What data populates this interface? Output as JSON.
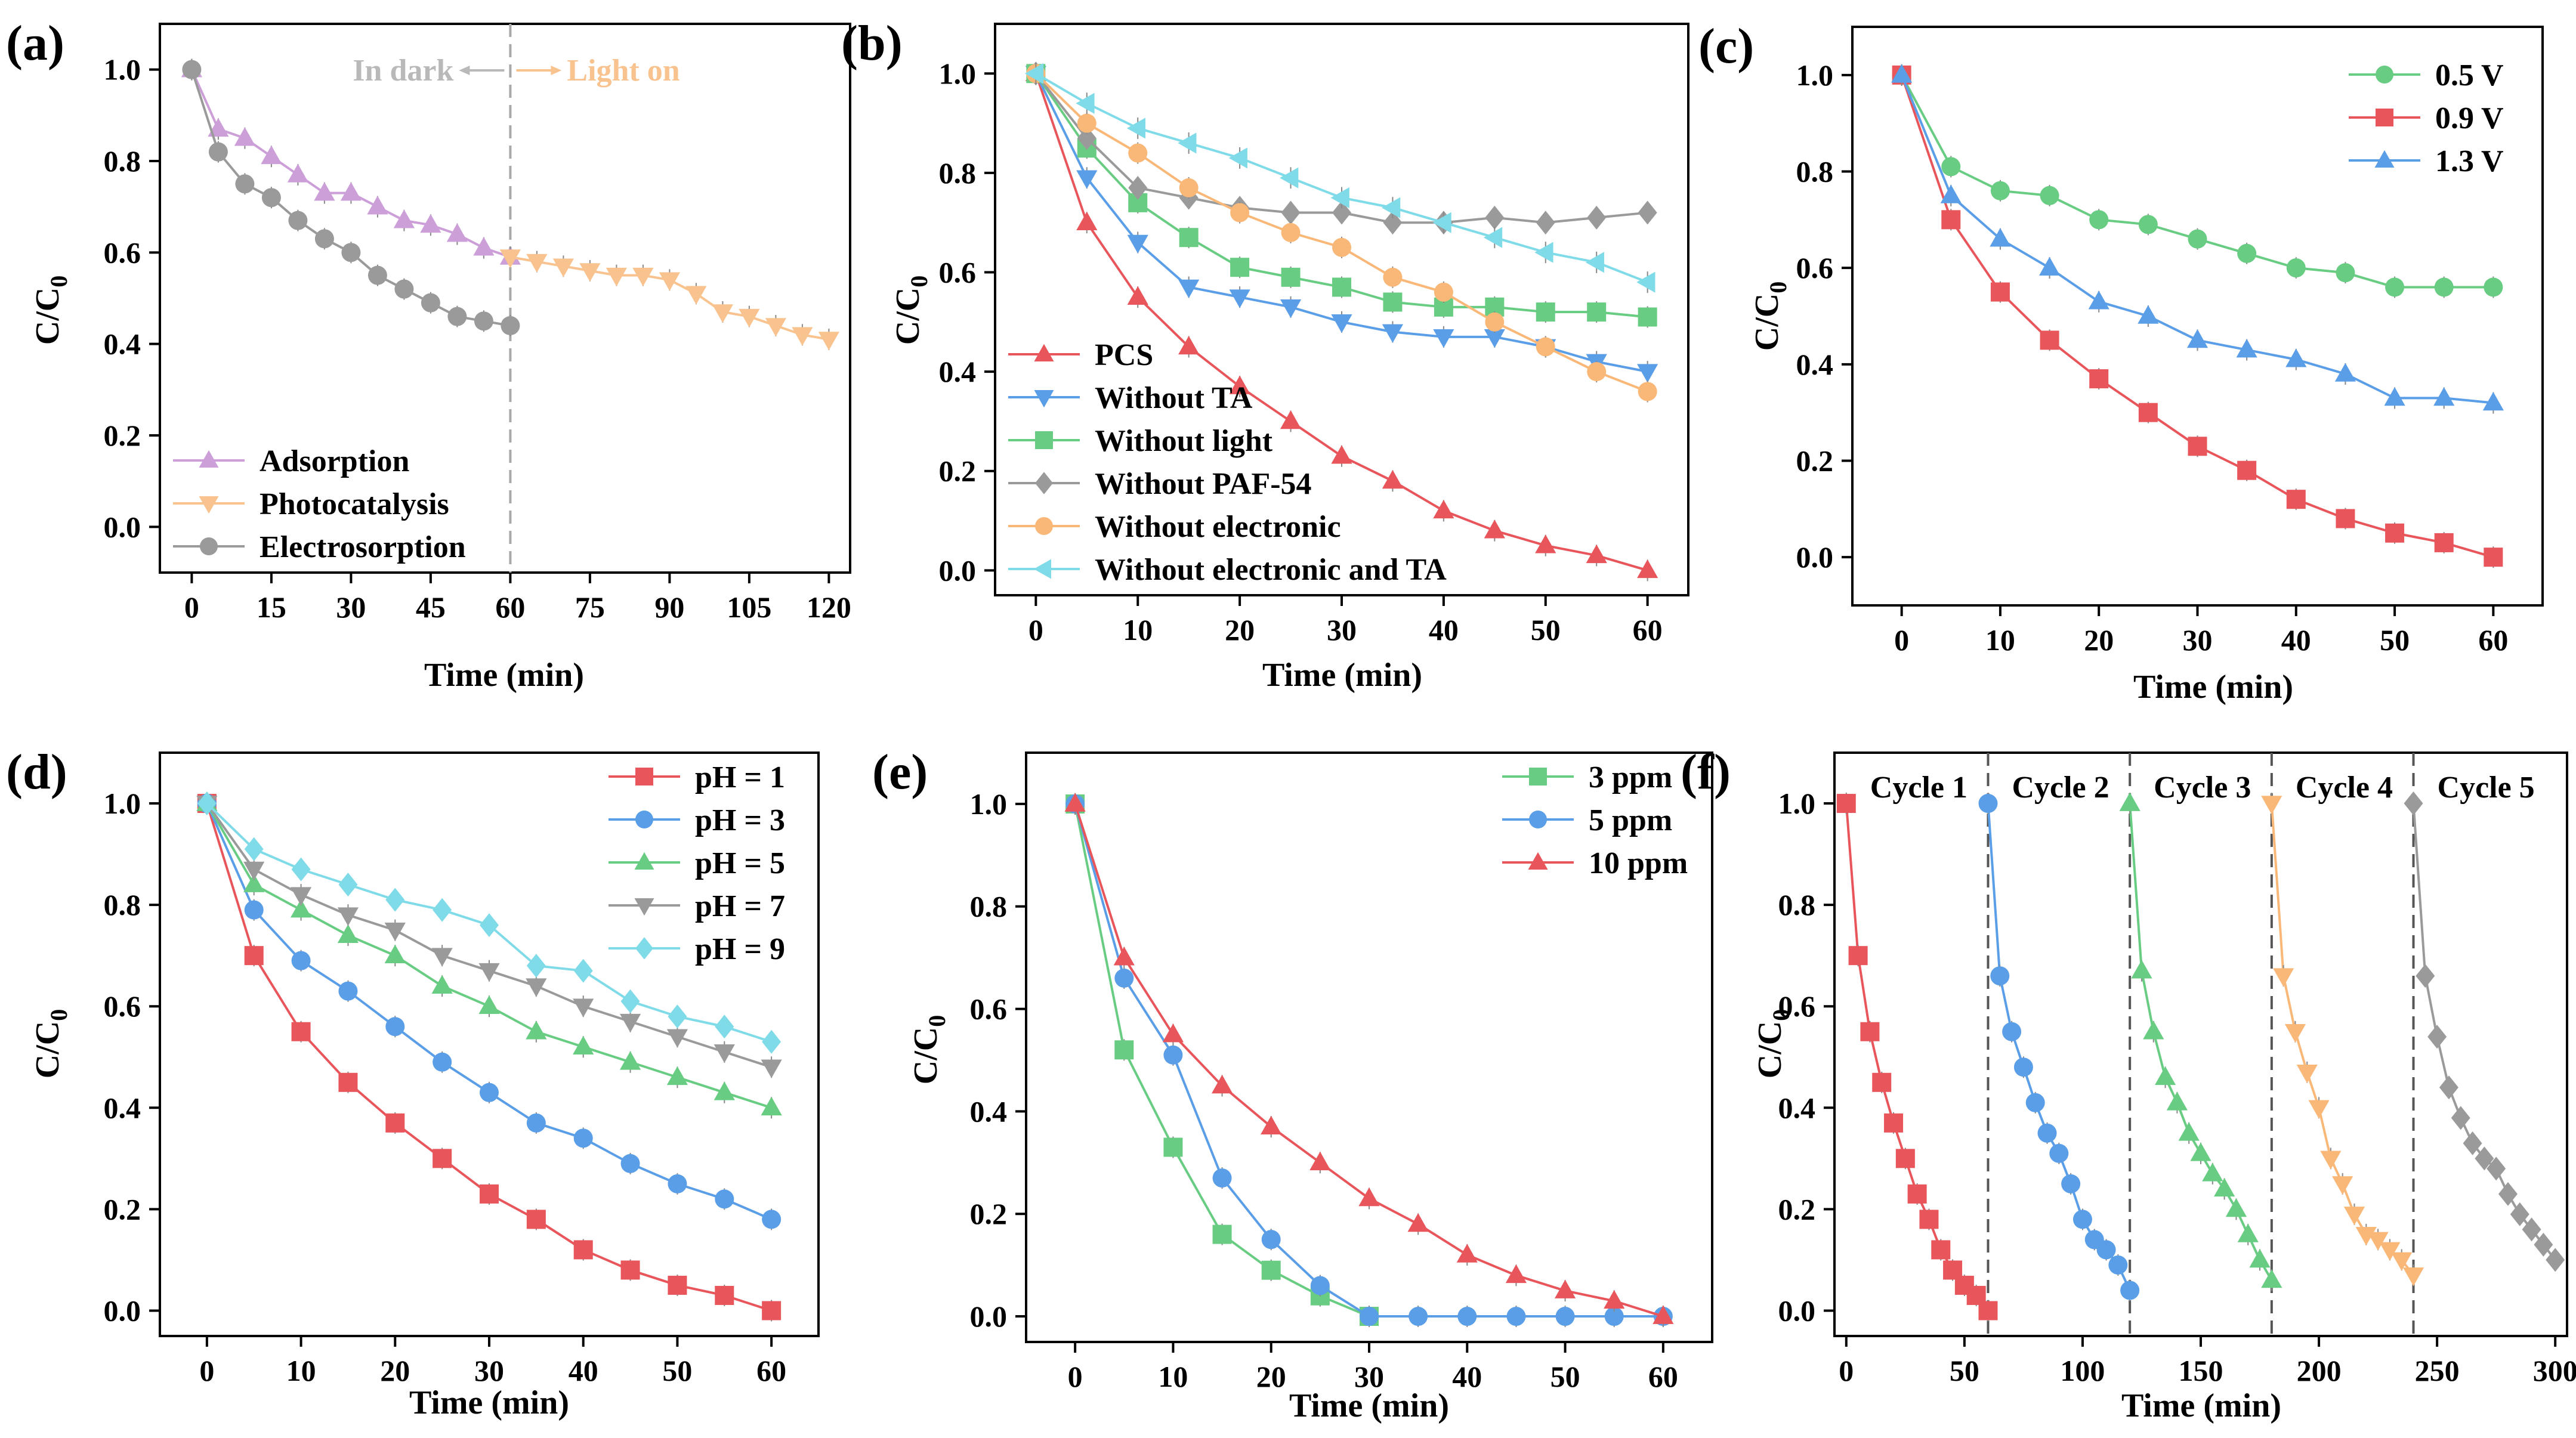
{
  "chart_data": [
    {
      "panel": "(a)",
      "type": "line",
      "xlabel": "Time (min)",
      "ylabel_main": "C/C",
      "ylabel_sub": "0",
      "xlim": [
        -6,
        124
      ],
      "ylim": [
        -0.1,
        1.1
      ],
      "xticks": [
        0,
        15,
        30,
        45,
        60,
        75,
        90,
        105,
        120
      ],
      "yticks": [
        "0.0",
        "0.2",
        "0.4",
        "0.6",
        "0.8",
        "1.0"
      ],
      "annotations": {
        "dark": "In dark",
        "light": "Light on",
        "dark_color": "#b9b9b9",
        "light_color": "#f9c38f"
      },
      "divider_x": [
        60
      ],
      "legend_pos": "bottom-left",
      "series": [
        {
          "name": "Adsorption",
          "color": "#cc9fd8",
          "marker": "tri-up",
          "x": [
            0,
            5,
            10,
            15,
            20,
            25,
            30,
            35,
            40,
            45,
            50,
            55,
            60
          ],
          "y": [
            1.0,
            0.87,
            0.85,
            0.81,
            0.77,
            0.73,
            0.73,
            0.7,
            0.67,
            0.66,
            0.64,
            0.61,
            0.59
          ]
        },
        {
          "name": "Photocatalysis",
          "color": "#f9c38f",
          "marker": "tri-down",
          "x": [
            60,
            65,
            70,
            75,
            80,
            85,
            90,
            95,
            100,
            105,
            110,
            115,
            120
          ],
          "y": [
            0.59,
            0.58,
            0.57,
            0.56,
            0.55,
            0.55,
            0.54,
            0.51,
            0.47,
            0.46,
            0.44,
            0.42,
            0.41
          ]
        },
        {
          "name": "Electrosorption",
          "color": "#9a9a9a",
          "marker": "circle",
          "x": [
            0,
            5,
            10,
            15,
            20,
            25,
            30,
            35,
            40,
            45,
            50,
            55,
            60
          ],
          "y": [
            1.0,
            0.82,
            0.75,
            0.72,
            0.67,
            0.63,
            0.6,
            0.55,
            0.52,
            0.49,
            0.46,
            0.45,
            0.44
          ]
        }
      ]
    },
    {
      "panel": "(b)",
      "type": "line",
      "xlabel": "Time (min)",
      "ylabel_main": "C/C",
      "ylabel_sub": "0",
      "xlim": [
        -4,
        64
      ],
      "ylim": [
        -0.05,
        1.1
      ],
      "xticks": [
        0,
        10,
        20,
        30,
        40,
        50,
        60
      ],
      "yticks": [
        "0.0",
        "0.2",
        "0.4",
        "0.6",
        "0.8",
        "1.0"
      ],
      "legend_pos": "bottom-left",
      "series": [
        {
          "name": "PCS",
          "color": "#e8555a",
          "marker": "tri-up",
          "x": [
            0,
            5,
            10,
            15,
            20,
            25,
            30,
            35,
            40,
            45,
            50,
            55,
            60
          ],
          "y": [
            1.0,
            0.7,
            0.55,
            0.45,
            0.37,
            0.3,
            0.23,
            0.18,
            0.12,
            0.08,
            0.05,
            0.03,
            0.0
          ]
        },
        {
          "name": "Without TA",
          "color": "#5b9ee8",
          "marker": "tri-down",
          "x": [
            0,
            5,
            10,
            15,
            20,
            25,
            30,
            35,
            40,
            45,
            50,
            55,
            60
          ],
          "y": [
            1.0,
            0.79,
            0.66,
            0.57,
            0.55,
            0.53,
            0.5,
            0.48,
            0.47,
            0.47,
            0.45,
            0.42,
            0.4
          ]
        },
        {
          "name": "Without light",
          "color": "#68cc82",
          "marker": "square",
          "x": [
            0,
            5,
            10,
            15,
            20,
            25,
            30,
            35,
            40,
            45,
            50,
            55,
            60
          ],
          "y": [
            1.0,
            0.85,
            0.74,
            0.67,
            0.61,
            0.59,
            0.57,
            0.54,
            0.53,
            0.53,
            0.52,
            0.52,
            0.51
          ]
        },
        {
          "name": "Without PAF-54",
          "color": "#9a9a9a",
          "marker": "diamond",
          "x": [
            0,
            5,
            10,
            15,
            20,
            25,
            30,
            35,
            40,
            45,
            50,
            55,
            60
          ],
          "y": [
            1.0,
            0.87,
            0.77,
            0.75,
            0.73,
            0.72,
            0.72,
            0.7,
            0.7,
            0.71,
            0.7,
            0.71,
            0.72
          ]
        },
        {
          "name": "Without electronic",
          "color": "#f9b878",
          "marker": "circle",
          "x": [
            0,
            5,
            10,
            15,
            20,
            25,
            30,
            35,
            40,
            45,
            50,
            55,
            60
          ],
          "y": [
            1.0,
            0.9,
            0.84,
            0.77,
            0.72,
            0.68,
            0.65,
            0.59,
            0.56,
            0.5,
            0.45,
            0.4,
            0.36
          ]
        },
        {
          "name": "Without electronic and TA",
          "color": "#7fdbe8",
          "marker": "tri-left",
          "x": [
            0,
            5,
            10,
            15,
            20,
            25,
            30,
            35,
            40,
            45,
            50,
            55,
            60
          ],
          "y": [
            1.0,
            0.94,
            0.89,
            0.86,
            0.83,
            0.79,
            0.75,
            0.73,
            0.7,
            0.67,
            0.64,
            0.62,
            0.58
          ]
        }
      ]
    },
    {
      "panel": "(c)",
      "type": "line",
      "xlabel": "Time (min)",
      "ylabel_main": "C/C",
      "ylabel_sub": "0",
      "xlim": [
        -5,
        65
      ],
      "ylim": [
        -0.1,
        1.1
      ],
      "xticks": [
        0,
        10,
        20,
        30,
        40,
        50,
        60
      ],
      "yticks": [
        "0.0",
        "0.2",
        "0.4",
        "0.6",
        "0.8",
        "1.0"
      ],
      "legend_pos": "top-right",
      "series": [
        {
          "name": "0.5 V",
          "color": "#68cc82",
          "marker": "circle",
          "x": [
            0,
            5,
            10,
            15,
            20,
            25,
            30,
            35,
            40,
            45,
            50,
            55,
            60
          ],
          "y": [
            1.0,
            0.81,
            0.76,
            0.75,
            0.7,
            0.69,
            0.66,
            0.63,
            0.6,
            0.59,
            0.56,
            0.56,
            0.56
          ]
        },
        {
          "name": "0.9 V",
          "color": "#e8555a",
          "marker": "square",
          "x": [
            0,
            5,
            10,
            15,
            20,
            25,
            30,
            35,
            40,
            45,
            50,
            55,
            60
          ],
          "y": [
            1.0,
            0.7,
            0.55,
            0.45,
            0.37,
            0.3,
            0.23,
            0.18,
            0.12,
            0.08,
            0.05,
            0.03,
            0.0
          ]
        },
        {
          "name": "1.3 V",
          "color": "#5b9ee8",
          "marker": "tri-up",
          "x": [
            0,
            5,
            10,
            15,
            20,
            25,
            30,
            35,
            40,
            45,
            50,
            55,
            60
          ],
          "y": [
            1.0,
            0.75,
            0.66,
            0.6,
            0.53,
            0.5,
            0.45,
            0.43,
            0.41,
            0.38,
            0.33,
            0.33,
            0.32
          ]
        }
      ]
    },
    {
      "panel": "(d)",
      "type": "line",
      "xlabel": "Time (min)",
      "ylabel_main": "C/C",
      "ylabel_sub": "0",
      "xlim": [
        -5,
        65
      ],
      "ylim": [
        -0.05,
        1.1
      ],
      "xticks": [
        0,
        10,
        20,
        30,
        40,
        50,
        60
      ],
      "yticks": [
        "0.0",
        "0.2",
        "0.4",
        "0.6",
        "0.8",
        "1.0"
      ],
      "legend_pos": "top-right",
      "series": [
        {
          "name": "pH = 1",
          "color": "#e8555a",
          "marker": "square",
          "x": [
            0,
            5,
            10,
            15,
            20,
            25,
            30,
            35,
            40,
            45,
            50,
            55,
            60
          ],
          "y": [
            1.0,
            0.7,
            0.55,
            0.45,
            0.37,
            0.3,
            0.23,
            0.18,
            0.12,
            0.08,
            0.05,
            0.03,
            0.0
          ]
        },
        {
          "name": "pH = 3",
          "color": "#5b9ee8",
          "marker": "circle",
          "x": [
            0,
            5,
            10,
            15,
            20,
            25,
            30,
            35,
            40,
            45,
            50,
            55,
            60
          ],
          "y": [
            1.0,
            0.79,
            0.69,
            0.63,
            0.56,
            0.49,
            0.43,
            0.37,
            0.34,
            0.29,
            0.25,
            0.22,
            0.18
          ]
        },
        {
          "name": "pH = 5",
          "color": "#68cc82",
          "marker": "tri-up",
          "x": [
            0,
            5,
            10,
            15,
            20,
            25,
            30,
            35,
            40,
            45,
            50,
            55,
            60
          ],
          "y": [
            1.0,
            0.84,
            0.79,
            0.74,
            0.7,
            0.64,
            0.6,
            0.55,
            0.52,
            0.49,
            0.46,
            0.43,
            0.4
          ]
        },
        {
          "name": "pH = 7",
          "color": "#9a9a9a",
          "marker": "tri-down",
          "x": [
            0,
            5,
            10,
            15,
            20,
            25,
            30,
            35,
            40,
            45,
            50,
            55,
            60
          ],
          "y": [
            1.0,
            0.87,
            0.82,
            0.78,
            0.75,
            0.7,
            0.67,
            0.64,
            0.6,
            0.57,
            0.54,
            0.51,
            0.48
          ]
        },
        {
          "name": "pH = 9",
          "color": "#7fdbe8",
          "marker": "diamond",
          "x": [
            0,
            5,
            10,
            15,
            20,
            25,
            30,
            35,
            40,
            45,
            50,
            55,
            60
          ],
          "y": [
            1.0,
            0.91,
            0.87,
            0.84,
            0.81,
            0.79,
            0.76,
            0.68,
            0.67,
            0.61,
            0.58,
            0.56,
            0.53
          ]
        }
      ]
    },
    {
      "panel": "(e)",
      "type": "line",
      "xlabel": "Time (min)",
      "ylabel_main": "C/C",
      "ylabel_sub": "0",
      "xlim": [
        -5,
        65
      ],
      "ylim": [
        -0.05,
        1.1
      ],
      "xticks": [
        0,
        10,
        20,
        30,
        40,
        50,
        60
      ],
      "yticks": [
        "0.0",
        "0.2",
        "0.4",
        "0.6",
        "0.8",
        "1.0"
      ],
      "legend_pos": "top-right",
      "series": [
        {
          "name": "3 ppm",
          "color": "#68cc82",
          "marker": "square",
          "x": [
            0,
            5,
            10,
            15,
            20,
            25,
            30
          ],
          "y": [
            1.0,
            0.52,
            0.33,
            0.16,
            0.09,
            0.04,
            0.0
          ]
        },
        {
          "name": "5 ppm",
          "color": "#5b9ee8",
          "marker": "circle",
          "x": [
            0,
            5,
            10,
            15,
            20,
            25,
            30,
            35,
            40,
            45,
            50,
            55,
            60
          ],
          "y": [
            1.0,
            0.66,
            0.51,
            0.27,
            0.15,
            0.06,
            0.0,
            0.0,
            0.0,
            0.0,
            0.0,
            0.0,
            0.0
          ]
        },
        {
          "name": "10 ppm",
          "color": "#e8555a",
          "marker": "tri-up",
          "x": [
            0,
            5,
            10,
            15,
            20,
            25,
            30,
            35,
            40,
            45,
            50,
            55,
            60
          ],
          "y": [
            1.0,
            0.7,
            0.55,
            0.45,
            0.37,
            0.3,
            0.23,
            0.18,
            0.12,
            0.08,
            0.05,
            0.03,
            0.0
          ]
        }
      ]
    },
    {
      "panel": "(f)",
      "type": "line",
      "xlabel": "Time (min)",
      "ylabel_main": "C/C",
      "ylabel_sub": "0",
      "xlim": [
        -5,
        305
      ],
      "ylim": [
        -0.05,
        1.1
      ],
      "xticks": [
        0,
        50,
        100,
        150,
        200,
        250,
        300
      ],
      "yticks": [
        "0.0",
        "0.2",
        "0.4",
        "0.6",
        "0.8",
        "1.0"
      ],
      "divider_x": [
        60,
        120,
        180,
        240
      ],
      "cycle_labels": [
        "Cycle 1",
        "Cycle 2",
        "Cycle 3",
        "Cycle 4",
        "Cycle 5"
      ],
      "series": [
        {
          "name": "Cycle 1",
          "color": "#e8555a",
          "marker": "square",
          "x": [
            0,
            5,
            10,
            15,
            20,
            25,
            30,
            35,
            40,
            45,
            50,
            55,
            60
          ],
          "y": [
            1.0,
            0.7,
            0.55,
            0.45,
            0.37,
            0.3,
            0.23,
            0.18,
            0.12,
            0.08,
            0.05,
            0.03,
            0.0
          ]
        },
        {
          "name": "Cycle 2",
          "color": "#5b9ee8",
          "marker": "circle",
          "x": [
            60,
            65,
            70,
            75,
            80,
            85,
            90,
            95,
            100,
            105,
            110,
            115,
            120
          ],
          "y": [
            1.0,
            0.66,
            0.55,
            0.48,
            0.41,
            0.35,
            0.31,
            0.25,
            0.18,
            0.14,
            0.12,
            0.09,
            0.04
          ]
        },
        {
          "name": "Cycle 3",
          "color": "#68cc82",
          "marker": "tri-up",
          "x": [
            120,
            125,
            130,
            135,
            140,
            145,
            150,
            155,
            160,
            165,
            170,
            175,
            180
          ],
          "y": [
            1.0,
            0.67,
            0.55,
            0.46,
            0.41,
            0.35,
            0.31,
            0.27,
            0.24,
            0.2,
            0.15,
            0.1,
            0.06
          ]
        },
        {
          "name": "Cycle 4",
          "color": "#f9b878",
          "marker": "tri-down",
          "x": [
            180,
            185,
            190,
            195,
            200,
            205,
            210,
            215,
            220,
            225,
            230,
            235,
            240
          ],
          "y": [
            1.0,
            0.66,
            0.55,
            0.47,
            0.4,
            0.3,
            0.25,
            0.19,
            0.15,
            0.14,
            0.12,
            0.1,
            0.07
          ]
        },
        {
          "name": "Cycle 5",
          "color": "#9a9a9a",
          "marker": "diamond",
          "x": [
            240,
            245,
            250,
            255,
            260,
            265,
            270,
            275,
            280,
            285,
            290,
            295,
            300
          ],
          "y": [
            1.0,
            0.66,
            0.54,
            0.44,
            0.38,
            0.33,
            0.3,
            0.28,
            0.23,
            0.19,
            0.16,
            0.13,
            0.1
          ]
        }
      ]
    }
  ]
}
